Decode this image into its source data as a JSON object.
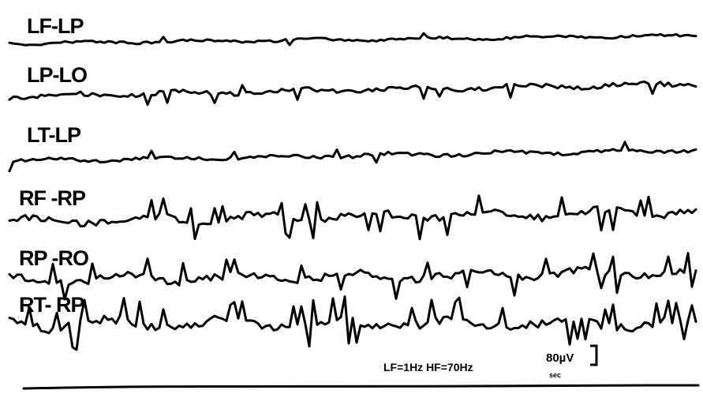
{
  "channels": [
    {
      "label": "LF-LP"
    },
    {
      "label": "LP-LO"
    },
    {
      "label": "LT-LP"
    },
    {
      "label": "RF -RP"
    },
    {
      "label": "RP -RO"
    },
    {
      "label": "RT- RP"
    }
  ],
  "filter_label": "LF=1Hz  HF=70Hz",
  "scale": {
    "amplitude": "80µV",
    "time": "sec"
  }
}
